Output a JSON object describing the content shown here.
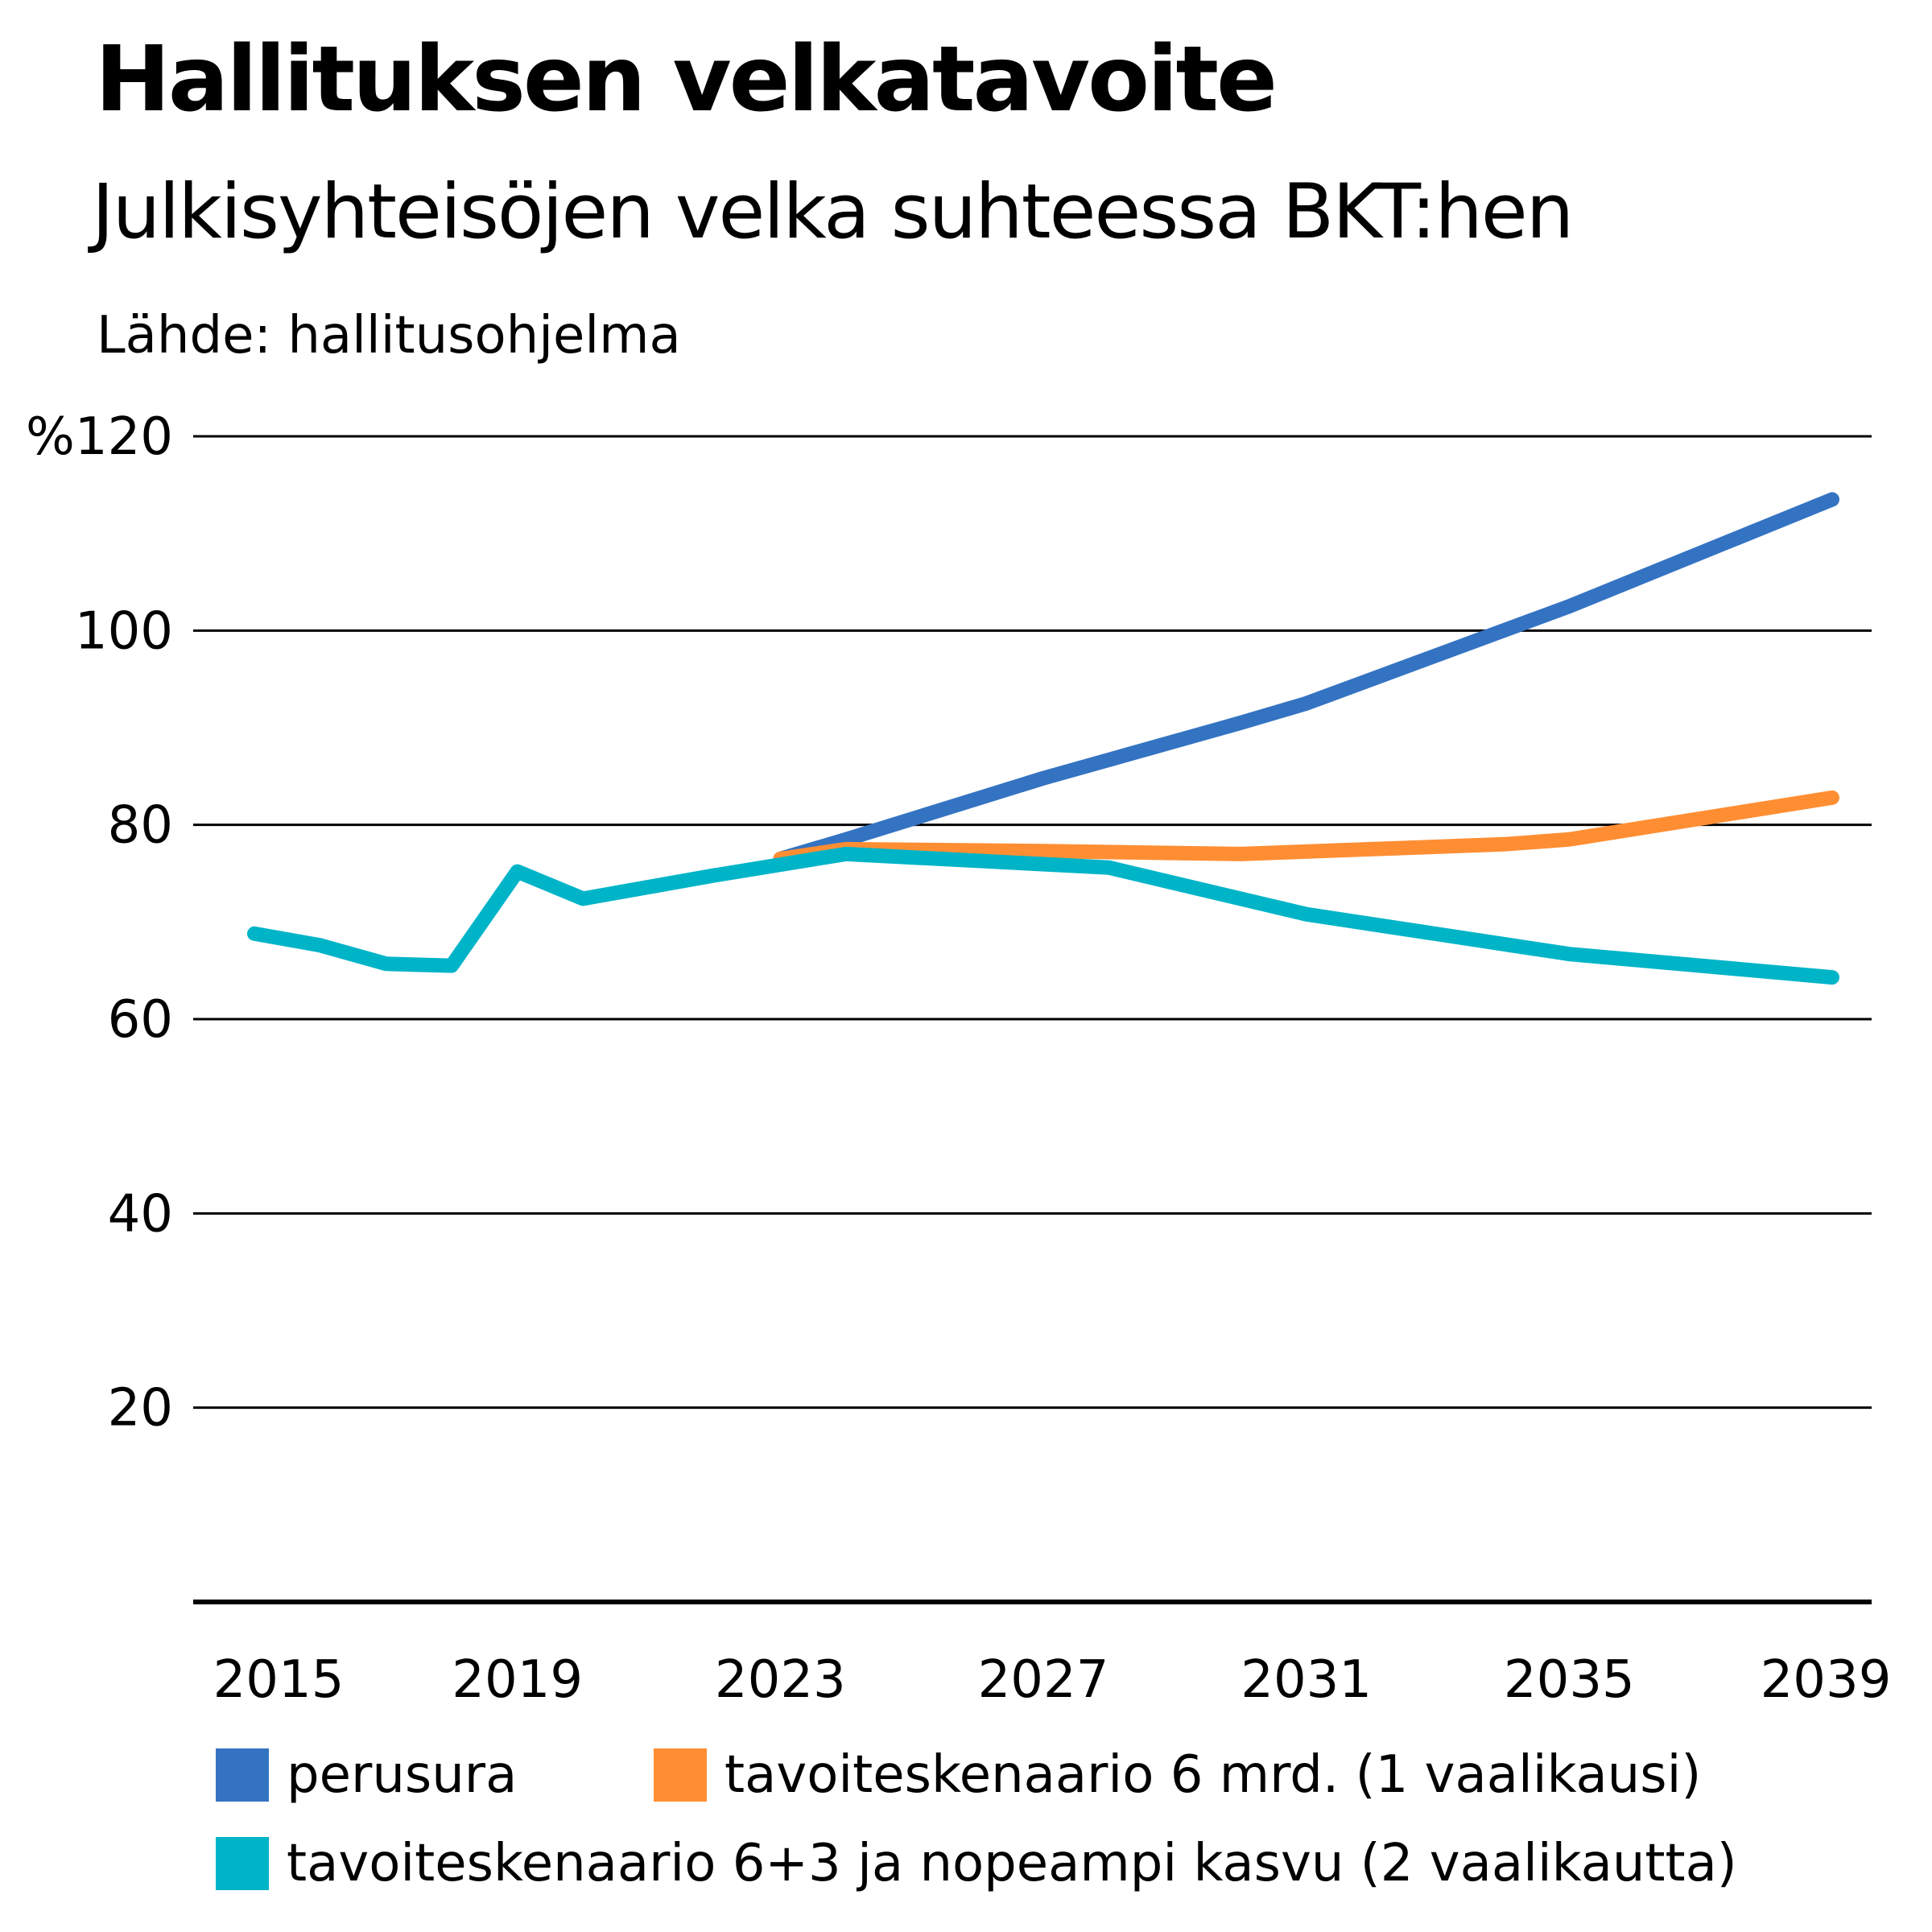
{
  "header": {
    "title": "Hallituksen velkatavoite",
    "subtitle": "Julkisyhteisöjen velka suhteessa BKT:hen",
    "source": "Lähde: hallitusohjelma"
  },
  "colors": {
    "perusura": "#3473C2",
    "tavoite1": "#FF8E33",
    "tavoite2": "#00B4C8"
  },
  "chart_data": {
    "type": "line",
    "title": "Hallituksen velkatavoite",
    "subtitle": "Julkisyhteisöjen velka suhteessa BKT:hen",
    "ylim": [
      0,
      120
    ],
    "xlim": [
      2015,
      2039
    ],
    "yticks": [
      20,
      40,
      60,
      80,
      100,
      120
    ],
    "ytick_labels": [
      "20",
      "40",
      "60",
      "80",
      "100",
      "%120"
    ],
    "xticks": [
      2015,
      2019,
      2023,
      2027,
      2031,
      2035,
      2039
    ],
    "xtick_labels": [
      "2015",
      "2019",
      "2023",
      "2027",
      "2031",
      "2035",
      "2039"
    ],
    "grid": true,
    "legend_position": "bottom",
    "series": [
      {
        "name": "perusura",
        "color": "#3473C2",
        "points": [
          [
            2023,
            76.5
          ],
          [
            2024,
            78.5
          ],
          [
            2027,
            84.8
          ],
          [
            2030,
            90.5
          ],
          [
            2031,
            92.5
          ],
          [
            2034,
            100.0
          ],
          [
            2035,
            102.5
          ],
          [
            2039,
            113.5
          ]
        ]
      },
      {
        "name": "tavoiteskenaario 6 mrd. (1 vaalikausi)",
        "color": "#FF8E33",
        "points": [
          [
            2023,
            76.5
          ],
          [
            2024,
            77.5
          ],
          [
            2027,
            77.3
          ],
          [
            2030,
            77.0
          ],
          [
            2034,
            78.0
          ],
          [
            2035,
            78.5
          ],
          [
            2039,
            82.8
          ]
        ]
      },
      {
        "name": "tavoiteskenaario 6+3 ja nopeampi kasvu (2 vaalikautta)",
        "color": "#00B4C8",
        "points": [
          [
            2015,
            68.8
          ],
          [
            2016,
            67.6
          ],
          [
            2017,
            65.7
          ],
          [
            2018,
            65.5
          ],
          [
            2019,
            75.2
          ],
          [
            2020,
            72.4
          ],
          [
            2022,
            74.8
          ],
          [
            2024,
            77.0
          ],
          [
            2028,
            75.6
          ],
          [
            2031,
            70.8
          ],
          [
            2035,
            66.7
          ],
          [
            2039,
            64.3
          ]
        ]
      }
    ]
  }
}
